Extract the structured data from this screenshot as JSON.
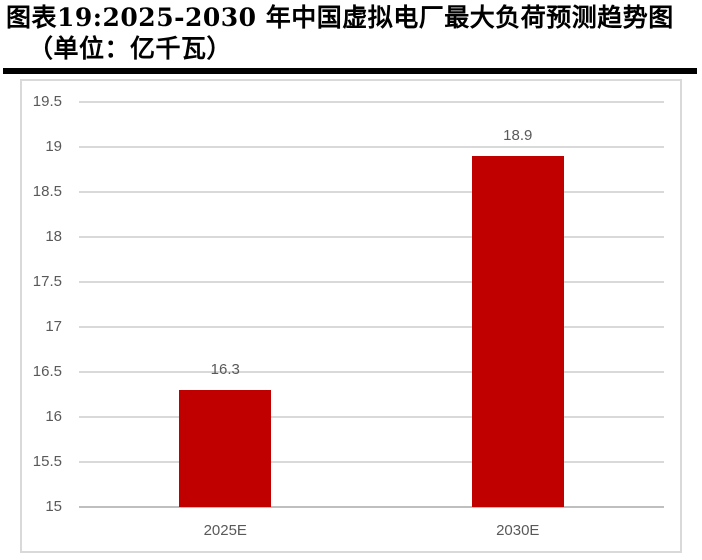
{
  "page": {
    "caption_line1": "图表19:2025-2030 年中国虚拟电厂最大负荷预测趋势图",
    "caption_line2": "（单位：亿千瓦）"
  },
  "chart_data": {
    "type": "bar",
    "title": "图表19:2025-2030 年中国虚拟电厂最大负荷预测趋势图（单位：亿千瓦）",
    "categories": [
      "2025E",
      "2030E"
    ],
    "values": [
      16.3,
      18.9
    ],
    "data_labels": [
      "16.3",
      "18.9"
    ],
    "xlabel": "",
    "ylabel": "",
    "ylim": [
      15,
      19.5
    ],
    "yticks": [
      19.5,
      19,
      18.5,
      18,
      17.5,
      17,
      16.5,
      16,
      15.5,
      15
    ],
    "ytick_labels": [
      "19.5",
      "19",
      "18.5",
      "18",
      "17.5",
      "17",
      "16.5",
      "16",
      "15.5",
      "15"
    ],
    "grid": true,
    "legend_position": "none",
    "colors": {
      "bar": "#c00000",
      "axis_text": "#595959",
      "gridline": "#d9d9d9",
      "axis_line": "#bfbfbf",
      "frame_border": "#d9d9d9",
      "caption_text": "#000000",
      "divider": "#000000"
    }
  }
}
